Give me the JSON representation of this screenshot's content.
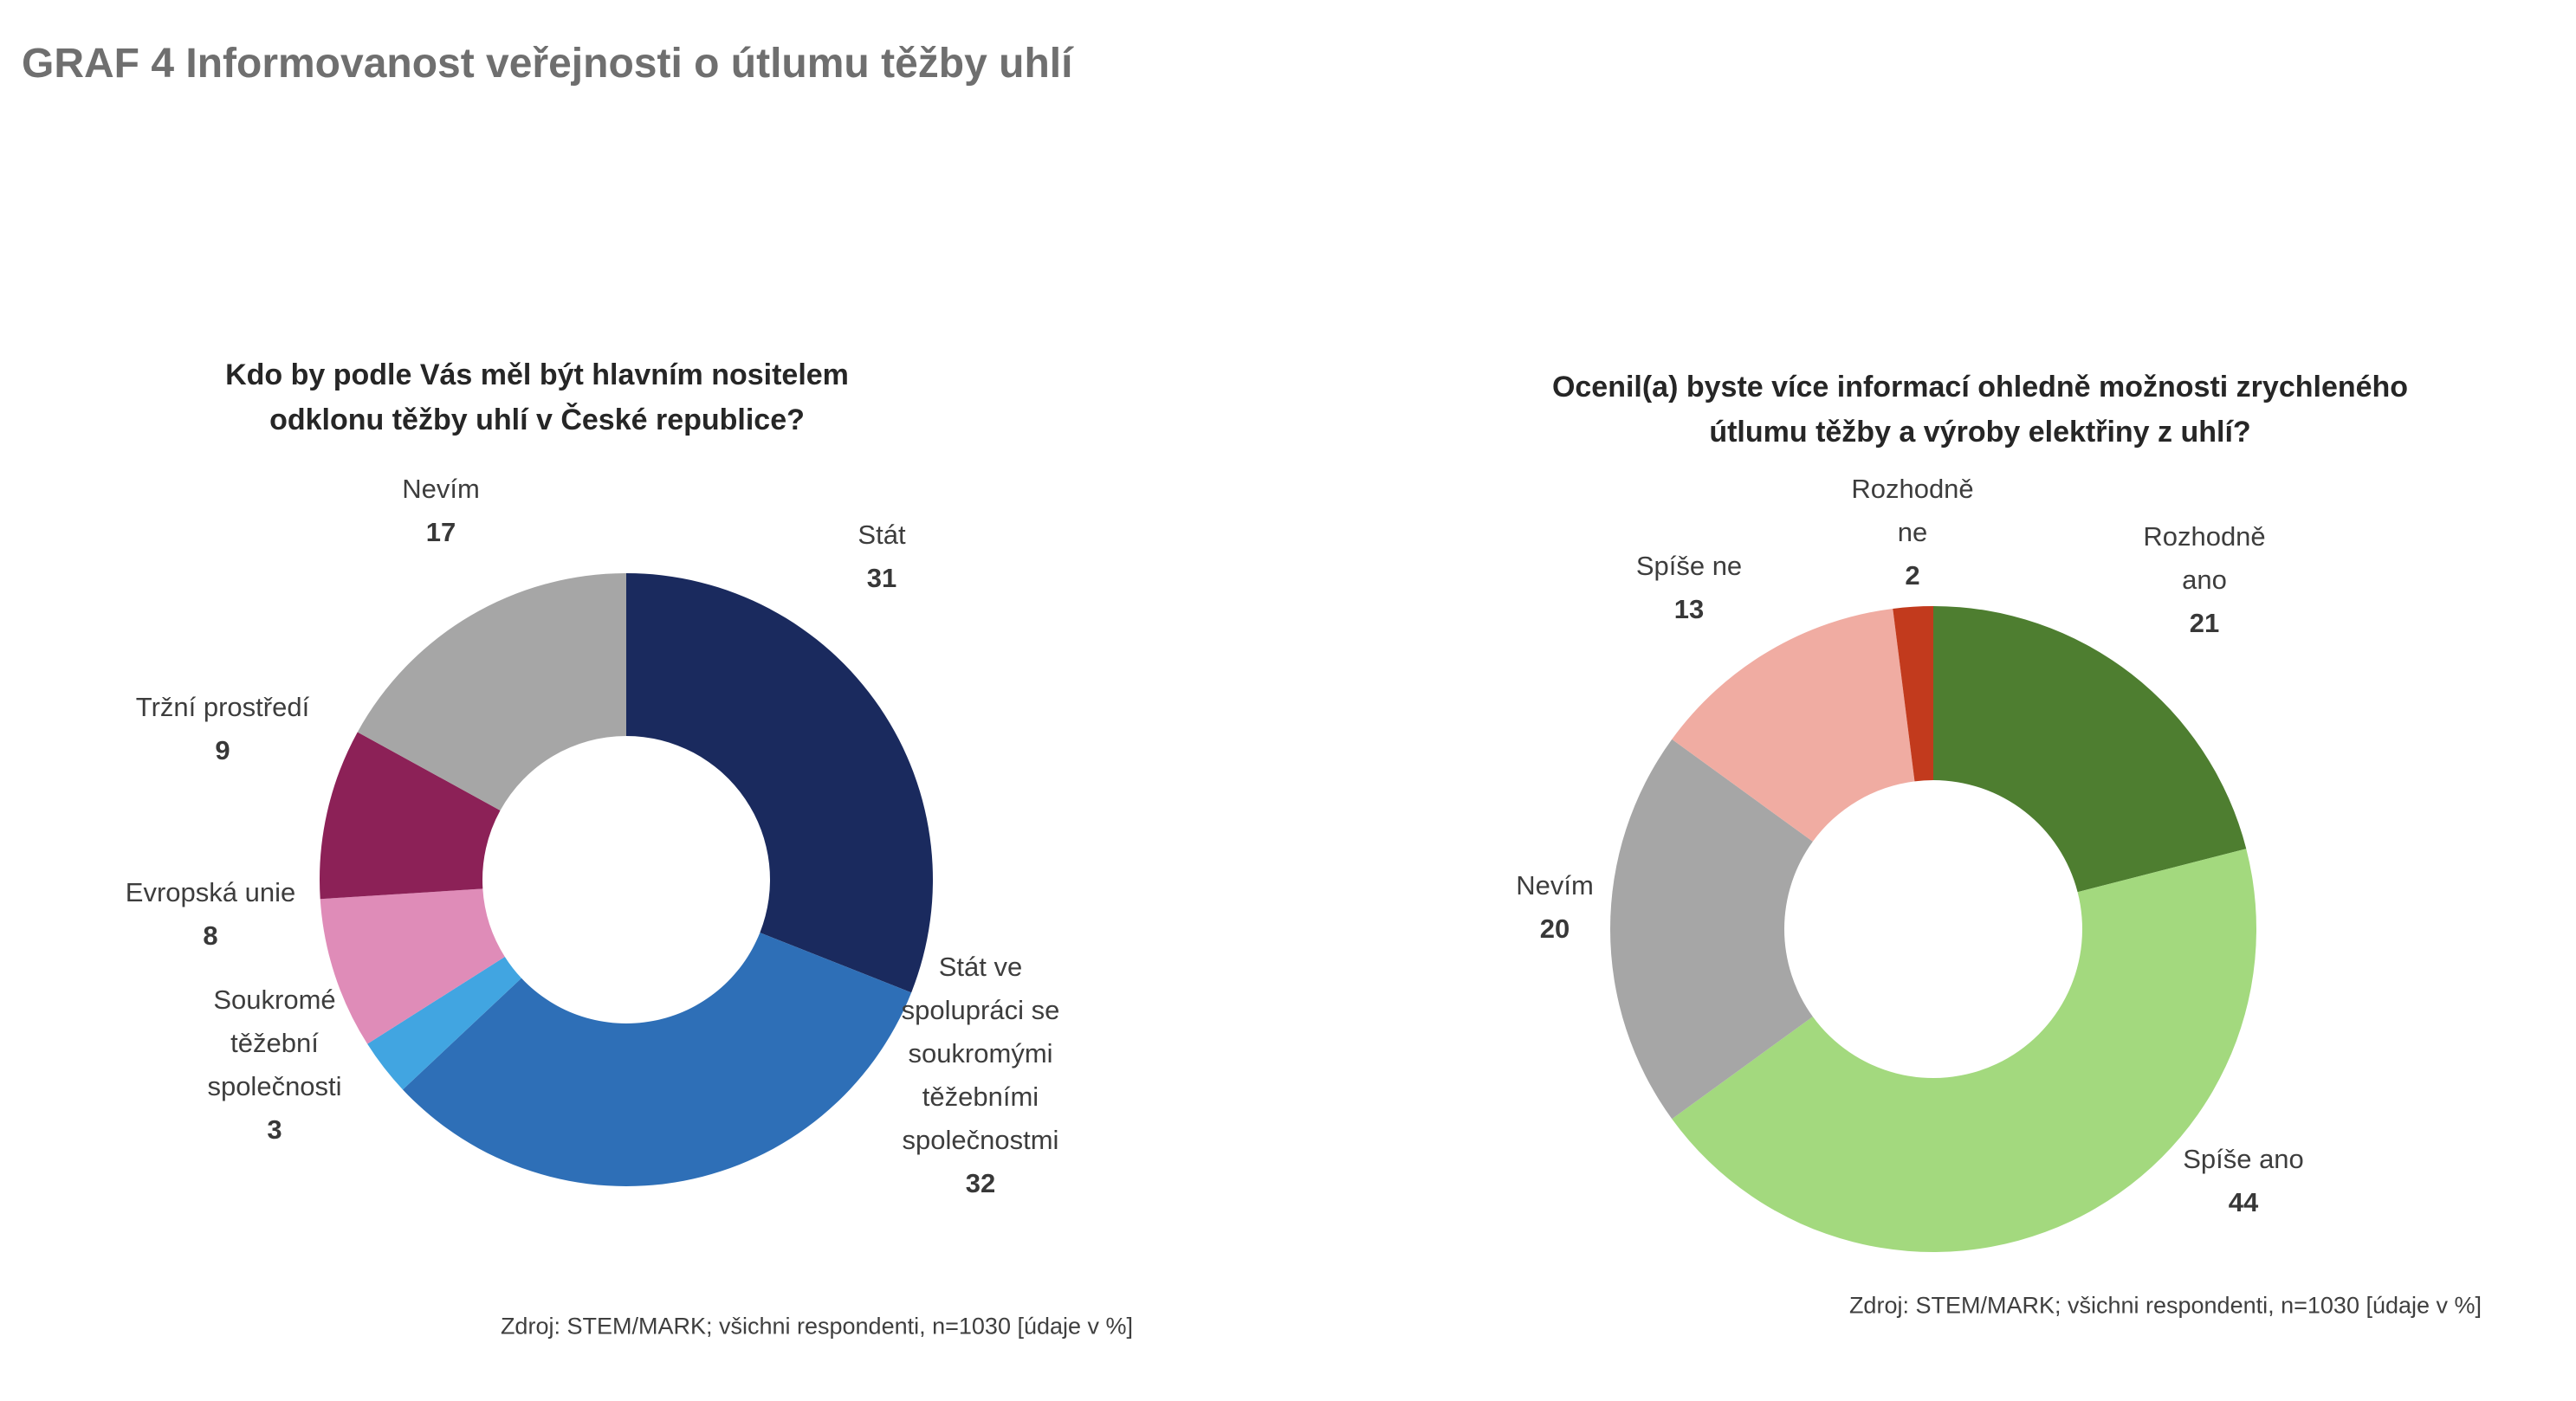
{
  "page": {
    "title": "GRAF 4 Informovanost veřejnosti o útlumu těžby uhlí",
    "title_color": "#6f6f6f",
    "background": "#ffffff"
  },
  "chart_data": [
    {
      "type": "pie",
      "subtype": "donut",
      "title": "Kdo by podle Vás měl být hlavním nositelem odklonu těžby uhlí v České republice?",
      "source": "Zdroj: STEM/MARK; všichni respondenti, n=1030 [údaje v %]",
      "start_angle_deg": 0,
      "direction": "clockwise",
      "series": [
        {
          "label": "Stát",
          "value": 31,
          "color": "#1a2a5e"
        },
        {
          "label": "Stát ve spolupráci se soukromými těžebními společnostmi",
          "value": 32,
          "color": "#2e6fb7"
        },
        {
          "label": "Soukromé těžební společnosti",
          "value": 3,
          "color": "#41a5e1"
        },
        {
          "label": "Evropská unie",
          "value": 8,
          "color": "#df8cb8"
        },
        {
          "label": "Tržní prostředí",
          "value": 9,
          "color": "#8c2157"
        },
        {
          "label": "Nevím",
          "value": 17,
          "color": "#a6a6a6"
        }
      ]
    },
    {
      "type": "pie",
      "subtype": "donut",
      "title": "Ocenil(a) byste více informací ohledně možnosti zrychleného útlumu těžby a výroby elektřiny z uhlí?",
      "source": "Zdroj: STEM/MARK; všichni respondenti, n=1030 [údaje v %]",
      "start_angle_deg": 0,
      "direction": "clockwise",
      "series": [
        {
          "label": "Rozhodně ano",
          "value": 21,
          "color": "#4e7e30"
        },
        {
          "label": "Spíše ano",
          "value": 44,
          "color": "#a3d97e"
        },
        {
          "label": "Nevím",
          "value": 20,
          "color": "#a6a6a6"
        },
        {
          "label": "Spíše ne",
          "value": 13,
          "color": "#f0aca2"
        },
        {
          "label": "Rozhodně ne",
          "value": 2,
          "color": "#c23a1d"
        }
      ]
    }
  ]
}
